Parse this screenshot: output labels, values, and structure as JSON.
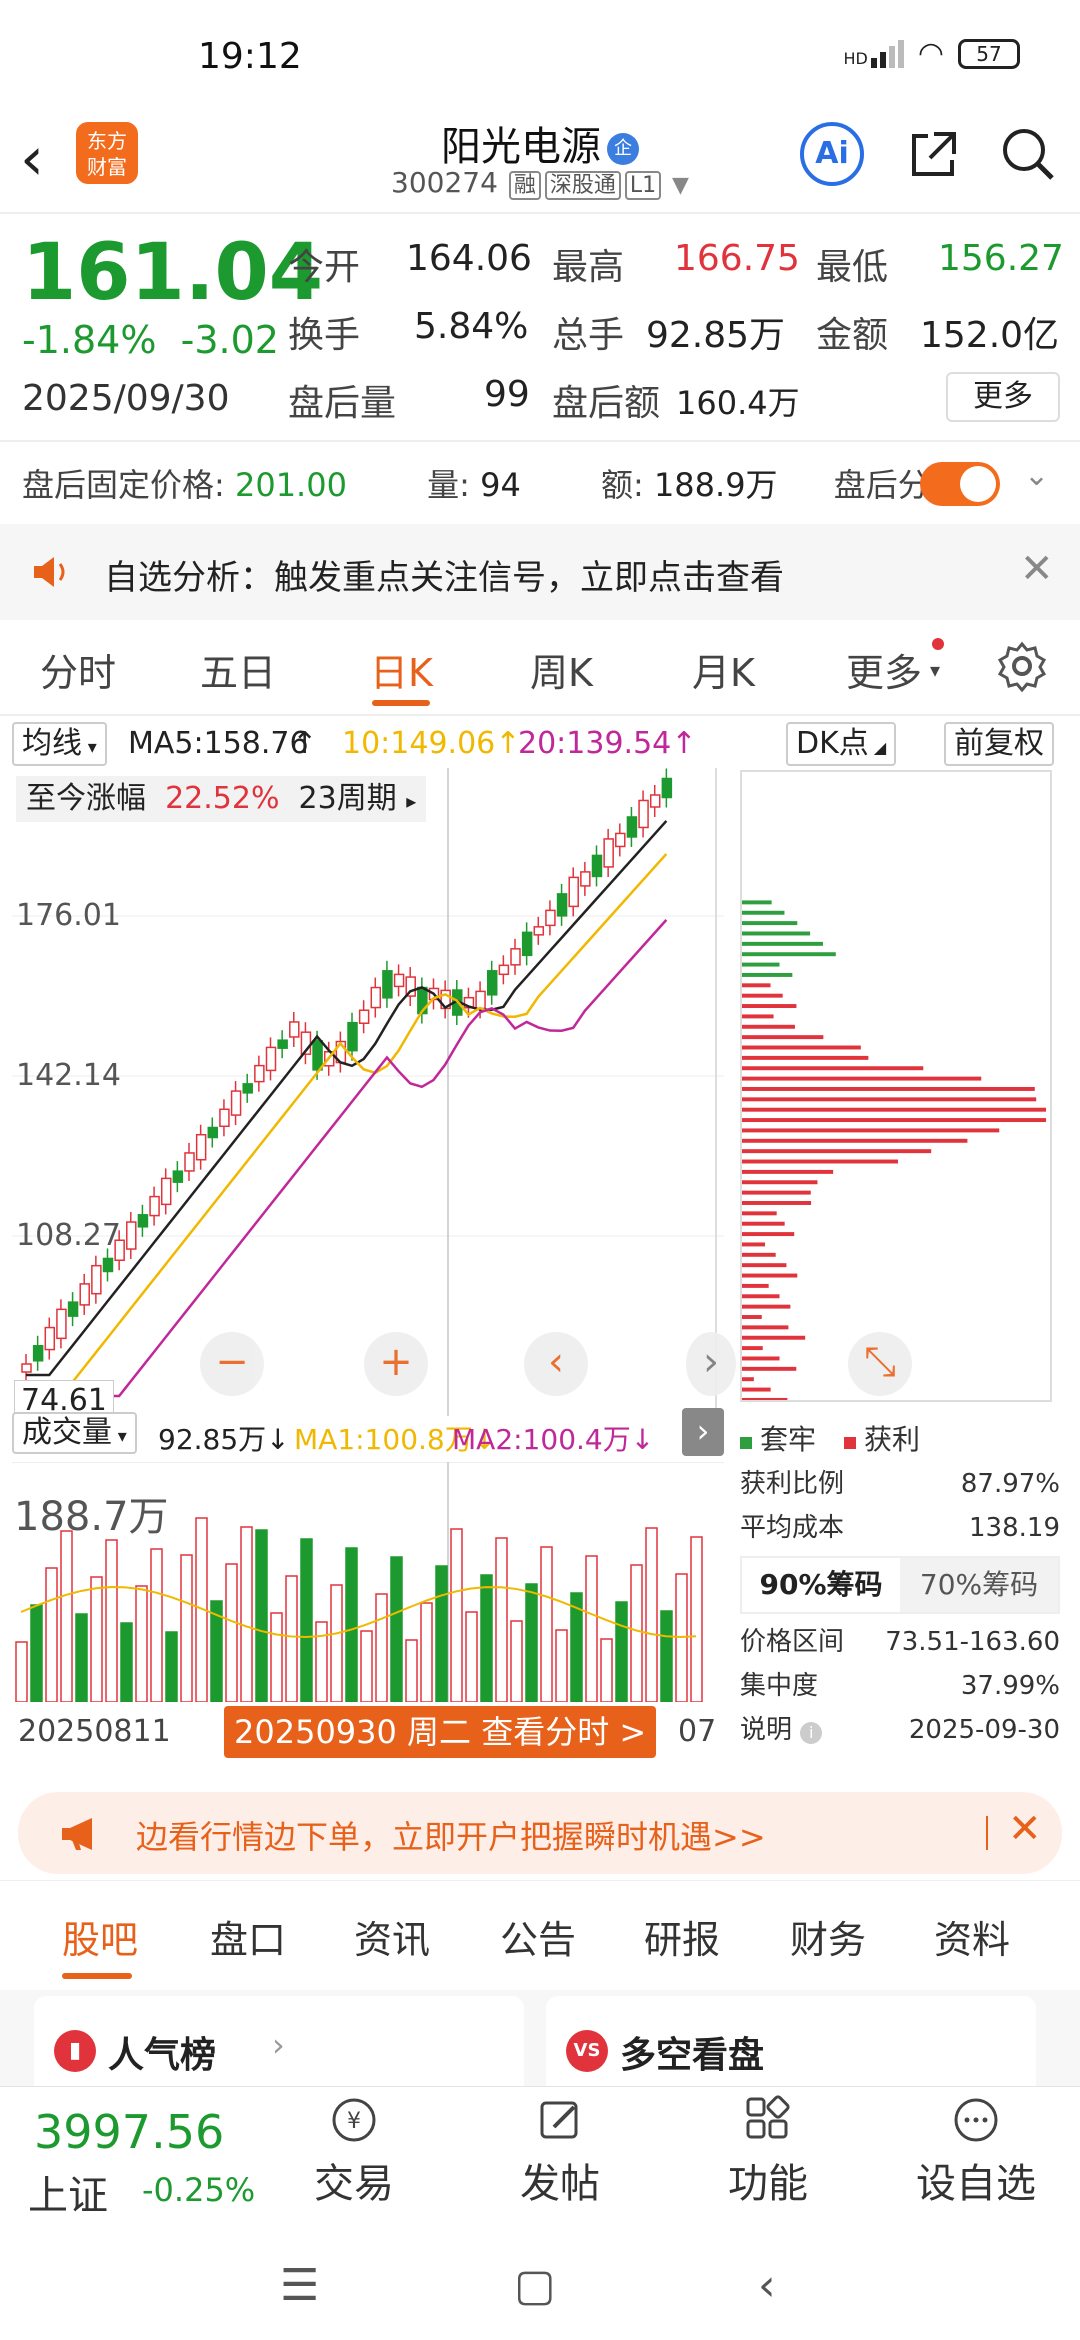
{
  "status": {
    "time": "19:12",
    "signal": "HD",
    "battery": "57"
  },
  "header": {
    "logo_line1": "东方",
    "logo_line2": "财富",
    "title": "阳光电源",
    "title_badge": "企",
    "code": "300274",
    "tag1": "融",
    "tag2": "深股通",
    "tag3": "L1",
    "ai": "Ai"
  },
  "quote": {
    "price": "161.04",
    "change_pct": "-1.84%",
    "change": "-3.02",
    "date": "2025/09/30",
    "open_label": "今开",
    "open": "164.06",
    "high_label": "最高",
    "high": "166.75",
    "low_label": "最低",
    "low": "156.27",
    "turnover_label": "换手",
    "turnover": "5.84%",
    "volume_label": "总手",
    "volume": "92.85万",
    "amount_label": "金额",
    "amount": "152.0亿",
    "after_vol_label": "盘后量",
    "after_vol": "99",
    "after_amt_label": "盘后额",
    "after_amt": "160.4万",
    "more": "更多"
  },
  "after_hours": {
    "fixed_label": "盘后固定价格:",
    "fixed_price": "201.00",
    "qty_label": "量:",
    "qty": "94",
    "amt_label": "额:",
    "amt": "188.9万",
    "timeline_label": "盘后分时"
  },
  "alert": {
    "text": "自选分析：触发重点关注信号，立即点击查看"
  },
  "tabs": [
    "分时",
    "五日",
    "日K",
    "周K",
    "月K",
    "更多"
  ],
  "ma": {
    "type": "均线",
    "ma5": "MA5:158.76",
    "ma10": "10:149.06",
    "ma20": "20:139.54",
    "dk": "DK点",
    "adjust": "前复权"
  },
  "kline": {
    "gain_label": "至今涨幅",
    "gain": "22.52%",
    "period": "23周期",
    "y_top": "176.01",
    "y_mid": "142.14",
    "y_low": "108.27",
    "low_value": "74.61"
  },
  "volume": {
    "type": "成交量",
    "vol": "92.85万",
    "ma1": "MA1:100.8万",
    "ma2": "MA2:100.4万",
    "y_max": "188.7万"
  },
  "chips": {
    "legend_trapped": "套牢",
    "legend_profit": "获利",
    "profit_ratio_label": "获利比例",
    "profit_ratio": "87.97%",
    "avg_cost_label": "平均成本",
    "avg_cost": "138.19",
    "seg_90": "90%筹码",
    "seg_70": "70%筹码",
    "range_label": "价格区间",
    "range": "73.51-163.60",
    "conc_label": "集中度",
    "conc": "37.99%",
    "note_label": "说明",
    "note_date": "2025-09-30"
  },
  "datebar": {
    "start": "20250811",
    "selected": "20250930 周二 查看分时 >",
    "end": "07"
  },
  "promo": {
    "text": "边看行情边下单，立即开户把握瞬时机遇>>"
  },
  "section_tabs": [
    "股吧",
    "盘口",
    "资讯",
    "公告",
    "研报",
    "财务",
    "资料"
  ],
  "cards": {
    "popular": "人气榜",
    "bull_bear": "多空看盘",
    "vs": "VS"
  },
  "bottom": {
    "index_value": "3997.56",
    "index_name": "上证",
    "index_change": "-0.25%",
    "nav": [
      "交易",
      "发帖",
      "功能",
      "设自选"
    ]
  },
  "colors": {
    "up": "#e0333b",
    "down": "#1d9a2f",
    "accent": "#e8611b",
    "ma5": "#222222",
    "ma10": "#f0b800",
    "ma20": "#c0289a"
  }
}
